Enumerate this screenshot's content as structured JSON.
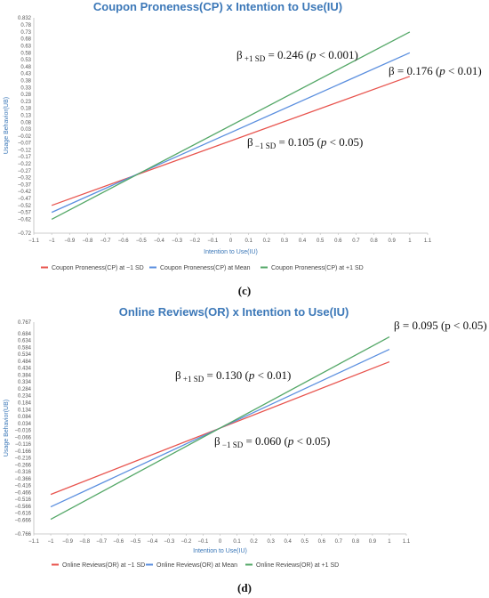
{
  "chart_data": [
    {
      "type": "line",
      "title": "Coupon Proneness(CP) x Intention to Use(IU)",
      "xlabel": "Intention to Use(IU)",
      "ylabel": "Usage Behavior(UB)",
      "panel_label": "(c)",
      "xlim": [
        -1.1,
        1.1
      ],
      "ylim": [
        -0.72,
        0.832
      ],
      "x_ticks": [
        "−1.1",
        "−1",
        "−0.9",
        "−0.8",
        "−0.7",
        "−0.6",
        "−0.5",
        "−0.4",
        "−0.3",
        "−0.2",
        "−0.1",
        "0",
        "0.1",
        "0.2",
        "0.3",
        "0.4",
        "0.5",
        "0.6",
        "0.7",
        "0.8",
        "0.9",
        "1",
        "1.1"
      ],
      "y_ticks": [
        "0.832",
        "0.78",
        "0.73",
        "0.68",
        "0.63",
        "0.58",
        "0.53",
        "0.48",
        "0.43",
        "0.38",
        "0.33",
        "0.28",
        "0.23",
        "0.18",
        "0.13",
        "0.08",
        "0.03",
        "−0.02",
        "−0.07",
        "−0.12",
        "−0.17",
        "−0.22",
        "−0.27",
        "−0.32",
        "−0.37",
        "−0.42",
        "−0.47",
        "−0.52",
        "−0.57",
        "−0.62",
        "−0.72"
      ],
      "y_tick_values": [
        0.832,
        0.78,
        0.73,
        0.68,
        0.63,
        0.58,
        0.53,
        0.48,
        0.43,
        0.38,
        0.33,
        0.28,
        0.23,
        0.18,
        0.13,
        0.08,
        0.03,
        -0.02,
        -0.07,
        -0.12,
        -0.17,
        -0.22,
        -0.27,
        -0.32,
        -0.37,
        -0.42,
        -0.47,
        -0.52,
        -0.57,
        -0.62,
        -0.72
      ],
      "grid": false,
      "legend_position": "bottom",
      "series": [
        {
          "name": "Coupon Proneness(CP) at −1 SD",
          "color": "#e8544e",
          "x": [
            -1,
            1
          ],
          "y": [
            -0.52,
            0.41
          ]
        },
        {
          "name": "Coupon Proneness(CP) at Mean",
          "color": "#5b8fdf",
          "x": [
            -1,
            1
          ],
          "y": [
            -0.57,
            0.58
          ]
        },
        {
          "name": "Coupon Proneness(CP) at +1 SD",
          "color": "#55a868",
          "x": [
            -1,
            1
          ],
          "y": [
            -0.62,
            0.73
          ]
        }
      ],
      "annotations": [
        {
          "beta": "β",
          "sub": "+1 SD",
          "text": " = 0.246 (",
          "p": "p",
          "rest": " < 0.001)"
        },
        {
          "beta": "β",
          "sub": "",
          "text": " = 0.176 (",
          "p": "p",
          "rest": " < 0.01)"
        },
        {
          "beta": "β",
          "sub": "−1 SD",
          "text": " = 0.105 (",
          "p": "p",
          "rest": " < 0.05)"
        }
      ]
    },
    {
      "type": "line",
      "title": "Online Reviews(OR) x Intention to Use(IU)",
      "xlabel": "Intention to Use(IU)",
      "ylabel": "Usage Behavior(UB)",
      "panel_label": "(d)",
      "xlim": [
        -1.1,
        1.1
      ],
      "ylim": [
        -0.766,
        0.767
      ],
      "x_ticks": [
        "−1.1",
        "−1",
        "−0.9",
        "−0.8",
        "−0.7",
        "−0.6",
        "−0.5",
        "−0.4",
        "−0.3",
        "−0.2",
        "−0.1",
        "0",
        "0.1",
        "0.2",
        "0.3",
        "0.4",
        "0.5",
        "0.6",
        "0.7",
        "0.8",
        "0.9",
        "1",
        "1.1"
      ],
      "y_ticks": [
        "0.767",
        "0.684",
        "0.634",
        "0.584",
        "0.534",
        "0.484",
        "0.434",
        "0.384",
        "0.334",
        "0.284",
        "0.234",
        "0.184",
        "0.134",
        "0.084",
        "0.034",
        "−0.016",
        "−0.066",
        "−0.116",
        "−0.166",
        "−0.216",
        "−0.266",
        "−0.316",
        "−0.366",
        "−0.416",
        "−0.466",
        "−0.516",
        "−0.566",
        "−0.616",
        "−0.666",
        "−0.766"
      ],
      "y_tick_values": [
        0.767,
        0.684,
        0.634,
        0.584,
        0.534,
        0.484,
        0.434,
        0.384,
        0.334,
        0.284,
        0.234,
        0.184,
        0.134,
        0.084,
        0.034,
        -0.016,
        -0.066,
        -0.116,
        -0.166,
        -0.216,
        -0.266,
        -0.316,
        -0.366,
        -0.416,
        -0.466,
        -0.516,
        -0.566,
        -0.616,
        -0.666,
        -0.766
      ],
      "grid": false,
      "legend_position": "bottom",
      "series": [
        {
          "name": "Online Reviews(OR) at −1 SD",
          "color": "#e8544e",
          "x": [
            -1,
            1
          ],
          "y": [
            -0.48,
            0.48
          ]
        },
        {
          "name": "Online Reviews(OR) at Mean",
          "color": "#5b8fdf",
          "x": [
            -1,
            1
          ],
          "y": [
            -0.57,
            0.57
          ]
        },
        {
          "name": "Online Reviews(OR) at +1 SD",
          "color": "#55a868",
          "x": [
            -1,
            1
          ],
          "y": [
            -0.66,
            0.66
          ]
        }
      ],
      "annotations": [
        {
          "beta": "β",
          "sub": "",
          "text": " = 0.095 (p < 0.05)",
          "p": "",
          "rest": ""
        },
        {
          "beta": "β",
          "sub": "+1 SD",
          "text": " =  0.130 (",
          "p": "p",
          "rest": " < 0.01)"
        },
        {
          "beta": "β",
          "sub": "−1 SD",
          "text": " = 0.060 (",
          "p": "p",
          "rest": " < 0.05)"
        }
      ]
    }
  ]
}
